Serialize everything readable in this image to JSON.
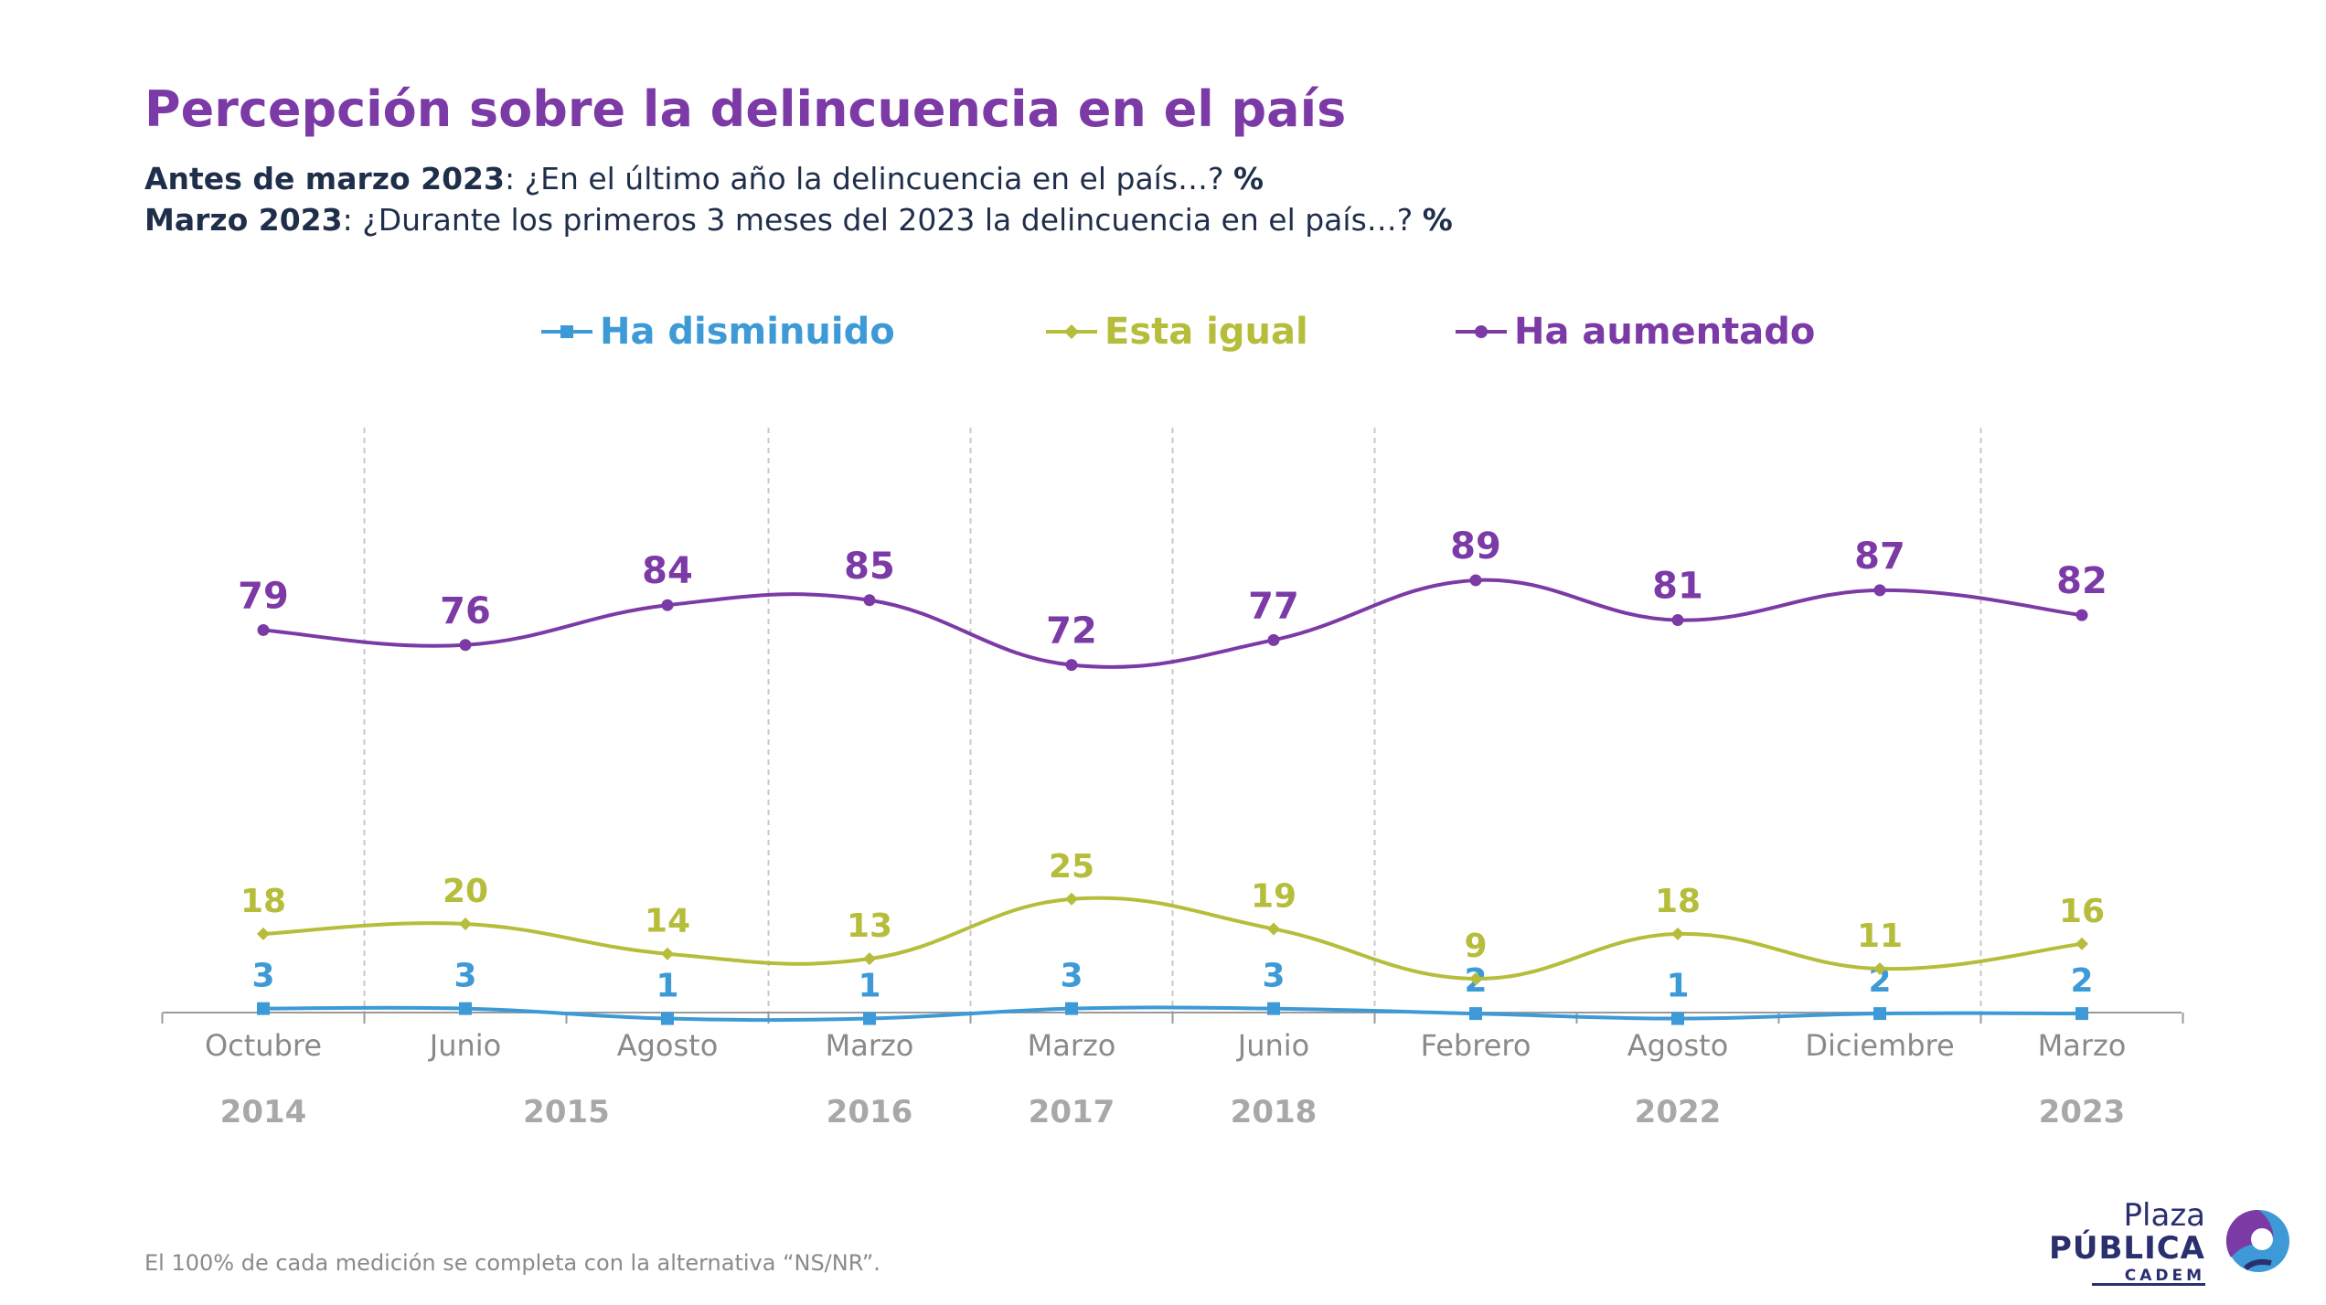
{
  "header": {
    "title": "Percepción sobre la delincuencia en el país",
    "q1_bold": "Antes de marzo 2023",
    "q1_text": ": ¿En el último año la delincuencia en el país…? ",
    "q1_pct": "%",
    "q2_bold": "Marzo 2023",
    "q2_text": ": ¿Durante los primeros 3 meses del 2023 la delincuencia en el país…? ",
    "q2_pct": "%"
  },
  "footnote": "El 100% de cada medición se completa con la alternativa “NS/NR”.",
  "logo": {
    "line1": "Plaza",
    "line2": "PÚBLICA",
    "line3": "CADEM"
  },
  "colors": {
    "disminuido": "#3d9ad6",
    "igual": "#b5bd3a",
    "aumentado": "#7b3aa5",
    "axis": "#9a9a9a",
    "grid": "#c8c8c8"
  },
  "chart_data": {
    "type": "line",
    "categories": [
      "Octubre",
      "Junio",
      "Agosto",
      "Marzo",
      "Marzo",
      "Junio",
      "Febrero",
      "Agosto",
      "Diciembre",
      "Marzo"
    ],
    "years": [
      {
        "label": "2014",
        "from": 0,
        "to": 0
      },
      {
        "label": "2015",
        "from": 1,
        "to": 2
      },
      {
        "label": "2016",
        "from": 3,
        "to": 3
      },
      {
        "label": "2017",
        "from": 4,
        "to": 4
      },
      {
        "label": "2018",
        "from": 5,
        "to": 5
      },
      {
        "label": "2022",
        "from": 6,
        "to": 8
      },
      {
        "label": "2023",
        "from": 9,
        "to": 9
      }
    ],
    "series": [
      {
        "name": "Ha disminuido",
        "key": "disminuido",
        "marker": "square",
        "values": [
          3,
          3,
          1,
          1,
          3,
          3,
          2,
          1,
          2,
          2
        ]
      },
      {
        "name": "Esta igual",
        "key": "igual",
        "marker": "diamond",
        "values": [
          18,
          20,
          14,
          13,
          25,
          19,
          9,
          18,
          11,
          16
        ]
      },
      {
        "name": "Ha aumentado",
        "key": "aumentado",
        "marker": "circle",
        "values": [
          79,
          76,
          84,
          85,
          72,
          77,
          89,
          81,
          87,
          82
        ]
      }
    ],
    "ylim": [
      0,
      100
    ],
    "legend_position": "top-center",
    "grid": "vertical-dashed-separators"
  }
}
